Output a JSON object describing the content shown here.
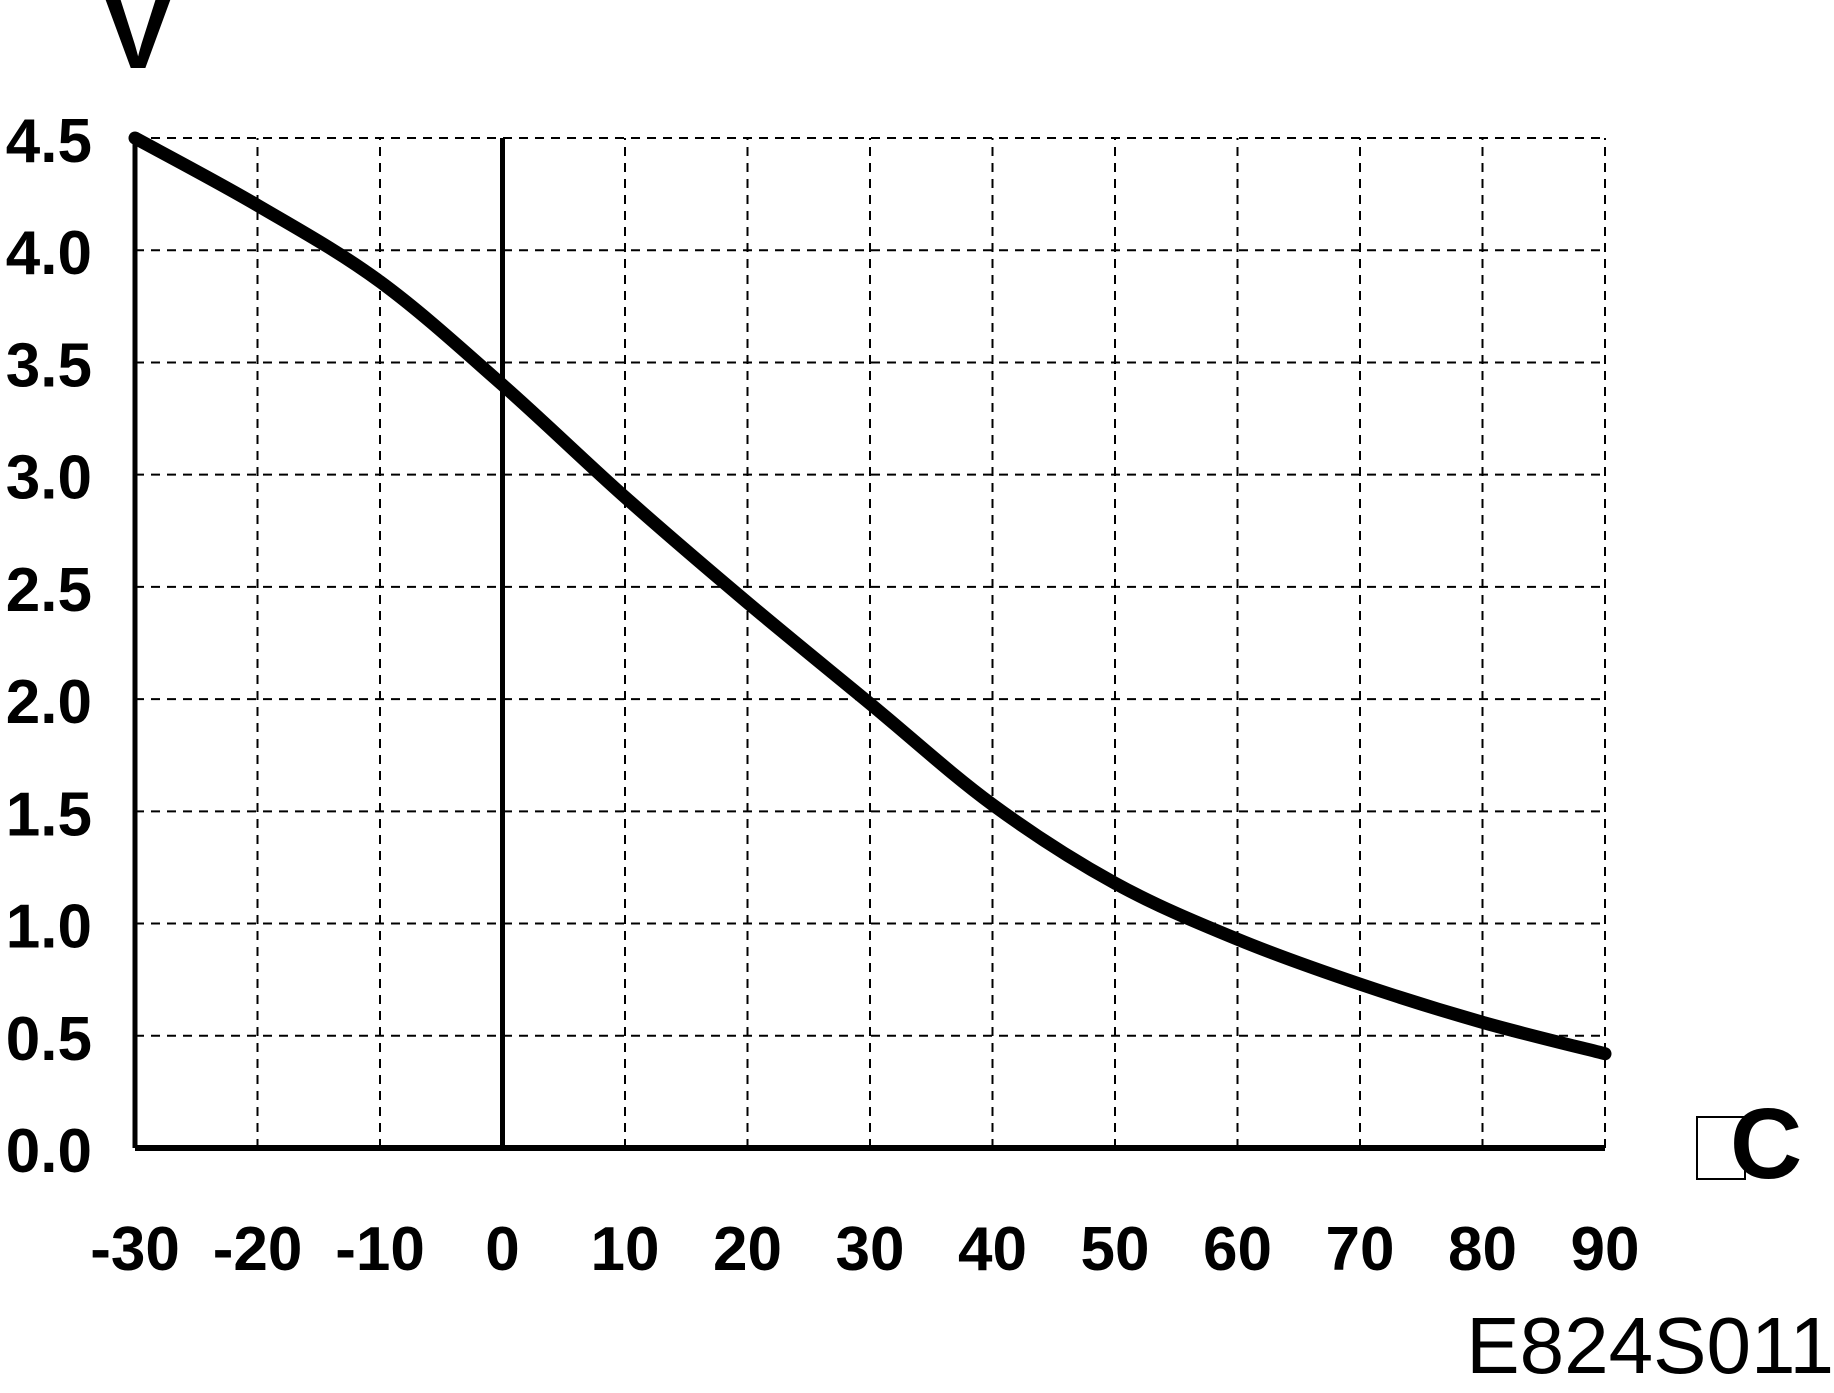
{
  "chart_data": {
    "type": "line",
    "ylabel": "V",
    "xlabel": "C",
    "x_ticks": [
      "-30",
      "-20",
      "-10",
      "0",
      "10",
      "20",
      "30",
      "40",
      "50",
      "60",
      "70",
      "80",
      "90"
    ],
    "y_ticks": [
      "4.5",
      "4.0",
      "3.5",
      "3.0",
      "2.5",
      "2.0",
      "1.5",
      "1.0",
      "0.5",
      "0.0"
    ],
    "xlim": [
      -30,
      90
    ],
    "ylim": [
      0,
      4.5
    ],
    "grid": true,
    "series": [
      {
        "x": [
          -30,
          -20,
          -10,
          0,
          10,
          20,
          30,
          40,
          50,
          60,
          70,
          80,
          90
        ],
        "y": [
          4.5,
          4.2,
          3.86,
          3.4,
          2.9,
          2.43,
          1.98,
          1.53,
          1.18,
          0.93,
          0.73,
          0.56,
          0.42
        ]
      }
    ],
    "colors": {
      "line": "#000000",
      "grid": "#000000"
    }
  },
  "figure_code": "E824S011"
}
